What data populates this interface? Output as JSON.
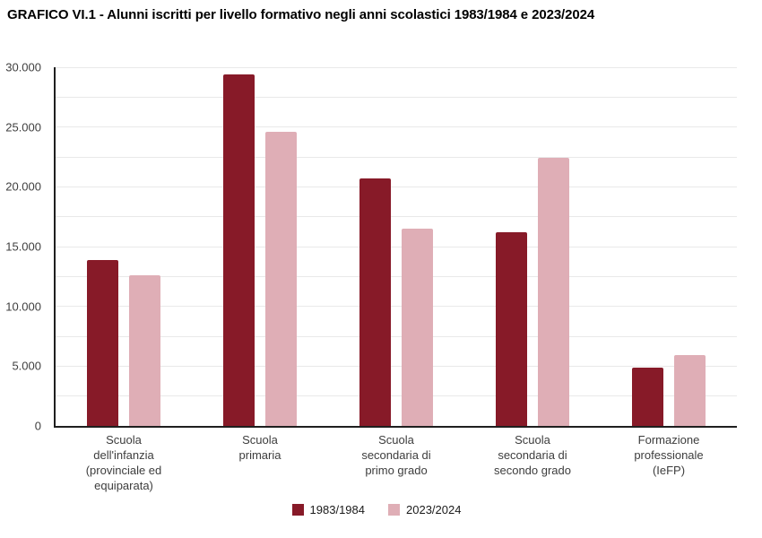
{
  "title": "GRAFICO VI.1 - Alunni iscritti per livello formativo negli anni scolastici 1983/1984 e 2023/2024",
  "chart_data": {
    "type": "bar",
    "title": "GRAFICO VI.1 - Alunni iscritti per livello formativo negli anni scolastici 1983/1984 e 2023/2024",
    "categories": [
      "Scuola dell'infanzia (provinciale ed equiparata)",
      "Scuola primaria",
      "Scuola secondaria di primo grado",
      "Scuola secondaria di secondo grado",
      "Formazione professionale (IeFP)"
    ],
    "category_label_lines": [
      [
        "Scuola",
        "dell'infanzia",
        "(provinciale ed",
        "equiparata)"
      ],
      [
        "Scuola",
        "primaria"
      ],
      [
        "Scuola",
        "secondaria di",
        "primo grado"
      ],
      [
        "Scuola",
        "secondaria di",
        "secondo grado"
      ],
      [
        "Formazione",
        "professionale",
        "(IeFP)"
      ]
    ],
    "series": [
      {
        "name": "1983/1984",
        "color": "#871a28",
        "values": [
          13900,
          29400,
          20700,
          16200,
          4900
        ]
      },
      {
        "name": "2023/2024",
        "color": "#dfaeb6",
        "values": [
          12600,
          24600,
          16500,
          22400,
          5950
        ]
      }
    ],
    "xlabel": "",
    "ylabel": "",
    "ylim": [
      0,
      30000
    ],
    "ytick_step": 5000,
    "ytick_labels": [
      "0",
      "5.000",
      "10.000",
      "15.000",
      "20.000",
      "25.000",
      "30.000"
    ],
    "gridline_step": 2500,
    "grid_on": true,
    "grid_color": "#e9e9e9",
    "axis_color": "#1f1f1f",
    "legend_position": "bottom-center"
  },
  "legend": {
    "items": [
      {
        "label": "1983/1984",
        "color": "#871a28"
      },
      {
        "label": "2023/2024",
        "color": "#dfaeb6"
      }
    ]
  }
}
